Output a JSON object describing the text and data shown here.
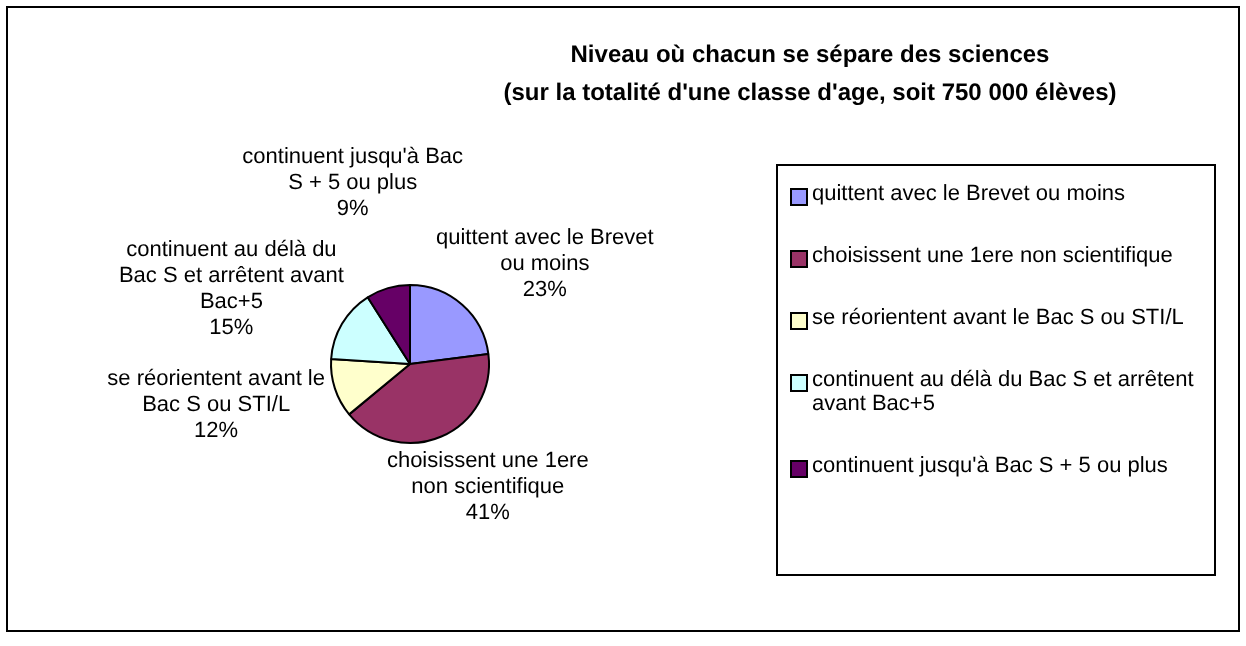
{
  "chart_data": {
    "type": "pie",
    "title": "Niveau où chacun se sépare des sciences",
    "subtitle": "(sur la totalité d'une classe d'age, soit 750 000 élèves)",
    "categories": [
      "quittent avec le Brevet ou moins",
      "choisissent une 1ere non scientifique",
      "se réorientent avant le Bac S ou STI/L",
      "continuent au délà du Bac S et arrêtent avant Bac+5",
      "continuent jusqu'à Bac S + 5 ou plus"
    ],
    "values": [
      23,
      41,
      12,
      15,
      9
    ],
    "colors": [
      "#9999ff",
      "#993366",
      "#ffffcc",
      "#ccffff",
      "#660066"
    ],
    "value_labels": [
      "23%",
      "41%",
      "12%",
      "15%",
      "9%"
    ],
    "legend": "right"
  }
}
